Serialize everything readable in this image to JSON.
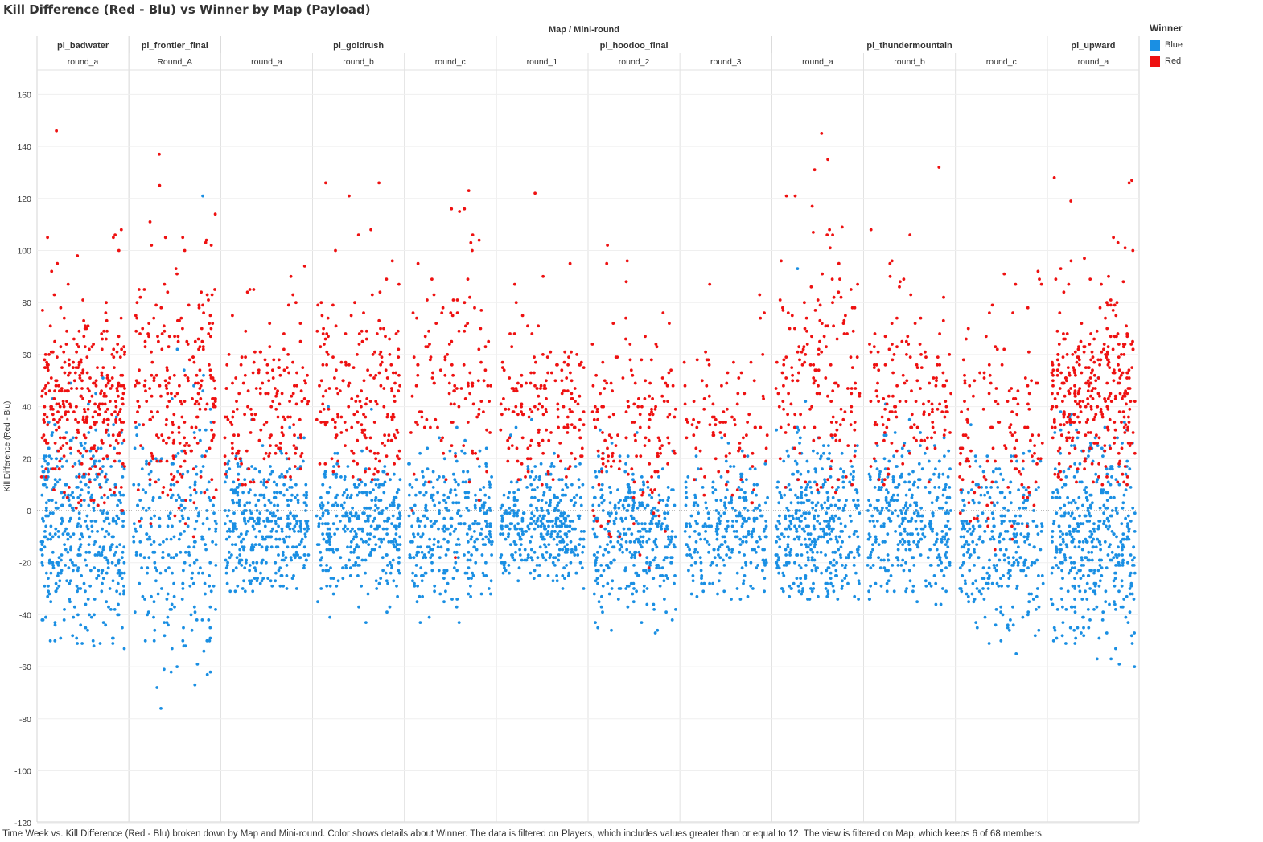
{
  "title": "Kill Difference (Red - Blu) vs Winner by Map (Payload)",
  "caption": "Time Week vs. Kill Difference (Red - Blu) broken down by Map and Mini-round.  Color shows details about Winner. The data is filtered on Players, which includes values greater than or equal to 12. The view is filtered on Map, which keeps 6 of 68 members.",
  "legend": {
    "title": "Winner",
    "items": [
      {
        "label": "Blue",
        "color": "#1a8fe3"
      },
      {
        "label": "Red",
        "color": "#ee1111"
      }
    ]
  },
  "chart_data": {
    "type": "scatter",
    "title": "Kill Difference (Red - Blu) vs Winner by Map (Payload)",
    "header_label": "Map  /  Mini-round",
    "ylabel": "Kill Difference (Red - Blu)",
    "ylim": [
      -120,
      170
    ],
    "yticks": [
      -120,
      -100,
      -80,
      -60,
      -40,
      -20,
      0,
      20,
      40,
      60,
      80,
      100,
      120,
      140,
      160
    ],
    "zero_line": true,
    "grid": true,
    "legend_position": "top-right",
    "colors": {
      "Blue": "#1a8fe3",
      "Red": "#ee1111"
    },
    "maps": [
      {
        "name": "pl_badwater",
        "rounds": [
          "round_a"
        ]
      },
      {
        "name": "pl_frontier_final",
        "rounds": [
          "Round_A"
        ]
      },
      {
        "name": "pl_goldrush",
        "rounds": [
          "round_a",
          "round_b",
          "round_c"
        ]
      },
      {
        "name": "pl_hoodoo_final",
        "rounds": [
          "round_1",
          "round_2",
          "round_3"
        ]
      },
      {
        "name": "pl_thundermountain",
        "rounds": [
          "round_a",
          "round_b",
          "round_c"
        ]
      },
      {
        "name": "pl_upward",
        "rounds": [
          "round_a"
        ]
      }
    ],
    "panels": [
      {
        "map": "pl_badwater",
        "round": "round_a",
        "red": {
          "count": 330,
          "min": 0,
          "max": 146,
          "mean": 40,
          "sd": 17
        },
        "blue": {
          "count": 420,
          "min": -53,
          "max": 65,
          "mean": -6,
          "sd": 20
        },
        "red_outliers": [
          146,
          108,
          106,
          105,
          105,
          98,
          100,
          92
        ],
        "blue_outliers": [
          -53,
          -50,
          -45,
          -42,
          -40,
          -38
        ]
      },
      {
        "map": "pl_frontier_final",
        "round": "Round_A",
        "red": {
          "count": 230,
          "min": -43,
          "max": 137,
          "mean": 44,
          "sd": 24
        },
        "blue": {
          "count": 250,
          "min": -76,
          "max": 121,
          "mean": -10,
          "sd": 25
        },
        "red_outliers": [
          137,
          125,
          114,
          105,
          104,
          103,
          102,
          100
        ],
        "blue_outliers": [
          121,
          -76,
          -67,
          -61,
          -60,
          -59,
          -52,
          -50
        ]
      },
      {
        "map": "pl_goldrush",
        "round": "round_a",
        "red": {
          "count": 160,
          "min": 10,
          "max": 94,
          "mean": 38,
          "sd": 18
        },
        "blue": {
          "count": 360,
          "min": -31,
          "max": 68,
          "mean": -6,
          "sd": 13
        },
        "red_outliers": [
          94,
          85,
          84,
          80
        ],
        "blue_outliers": [
          -31,
          -27,
          -25
        ]
      },
      {
        "map": "pl_goldrush",
        "round": "round_b",
        "red": {
          "count": 190,
          "min": 12,
          "max": 126,
          "mean": 45,
          "sd": 20
        },
        "blue": {
          "count": 330,
          "min": -43,
          "max": 79,
          "mean": -5,
          "sd": 13
        },
        "red_outliers": [
          126,
          126,
          121,
          108,
          106,
          100
        ],
        "blue_outliers": [
          -43,
          -35,
          -29
        ]
      },
      {
        "map": "pl_goldrush",
        "round": "round_c",
        "red": {
          "count": 120,
          "min": -26,
          "max": 123,
          "mean": 48,
          "sd": 22
        },
        "blue": {
          "count": 300,
          "min": -43,
          "max": 50,
          "mean": -6,
          "sd": 14
        },
        "red_outliers": [
          123,
          116,
          115,
          106,
          104,
          103,
          100
        ],
        "blue_outliers": [
          -43,
          -34,
          -33
        ]
      },
      {
        "map": "pl_hoodoo_final",
        "round": "round_1",
        "red": {
          "count": 160,
          "min": 8,
          "max": 122,
          "mean": 39,
          "sd": 15
        },
        "blue": {
          "count": 350,
          "min": -30,
          "max": 60,
          "mean": -6,
          "sd": 11
        },
        "red_outliers": [
          122,
          95,
          87,
          80
        ],
        "blue_outliers": [
          -30,
          -27
        ]
      },
      {
        "map": "pl_hoodoo_final",
        "round": "round_2",
        "red": {
          "count": 150,
          "min": -37,
          "max": 102,
          "mean": 30,
          "sd": 20
        },
        "blue": {
          "count": 330,
          "min": -47,
          "max": 55,
          "mean": -10,
          "sd": 15
        },
        "red_outliers": [
          102,
          96,
          95,
          88,
          76
        ],
        "blue_outliers": [
          -47,
          -43,
          -39,
          -36
        ]
      },
      {
        "map": "pl_hoodoo_final",
        "round": "round_3",
        "red": {
          "count": 90,
          "min": 0,
          "max": 87,
          "mean": 35,
          "sd": 18
        },
        "blue": {
          "count": 260,
          "min": -34,
          "max": 40,
          "mean": -8,
          "sd": 13
        },
        "red_outliers": [
          87,
          83,
          76,
          74
        ],
        "blue_outliers": [
          -34,
          -29
        ]
      },
      {
        "map": "pl_thundermountain",
        "round": "round_a",
        "red": {
          "count": 160,
          "min": 7,
          "max": 145,
          "mean": 50,
          "sd": 24
        },
        "blue": {
          "count": 380,
          "min": -34,
          "max": 93,
          "mean": -7,
          "sd": 16
        },
        "red_outliers": [
          145,
          135,
          131,
          117,
          109,
          106,
          101,
          96
        ],
        "blue_outliers": [
          -34,
          -32,
          93
        ]
      },
      {
        "map": "pl_thundermountain",
        "round": "round_b",
        "red": {
          "count": 140,
          "min": 10,
          "max": 132,
          "mean": 45,
          "sd": 20
        },
        "blue": {
          "count": 330,
          "min": -36,
          "max": 60,
          "mean": -4,
          "sd": 14
        },
        "red_outliers": [
          132,
          108,
          106,
          90,
          89,
          83
        ],
        "blue_outliers": [
          -36,
          -31
        ]
      },
      {
        "map": "pl_thundermountain",
        "round": "round_c",
        "red": {
          "count": 130,
          "min": -20,
          "max": 92,
          "mean": 30,
          "sd": 22
        },
        "blue": {
          "count": 290,
          "min": -55,
          "max": 52,
          "mean": -12,
          "sd": 16
        },
        "red_outliers": [
          92,
          91,
          89,
          87,
          87
        ],
        "blue_outliers": [
          -55,
          -48,
          -45,
          -44,
          -43
        ]
      },
      {
        "map": "pl_upward",
        "round": "round_a",
        "red": {
          "count": 330,
          "min": 10,
          "max": 128,
          "mean": 45,
          "sd": 18
        },
        "blue": {
          "count": 420,
          "min": -60,
          "max": 85,
          "mean": -10,
          "sd": 20
        },
        "red_outliers": [
          128,
          127,
          126,
          119,
          105,
          103,
          101,
          100,
          97
        ],
        "blue_outliers": [
          -60,
          -51,
          -49,
          -47
        ]
      }
    ]
  }
}
